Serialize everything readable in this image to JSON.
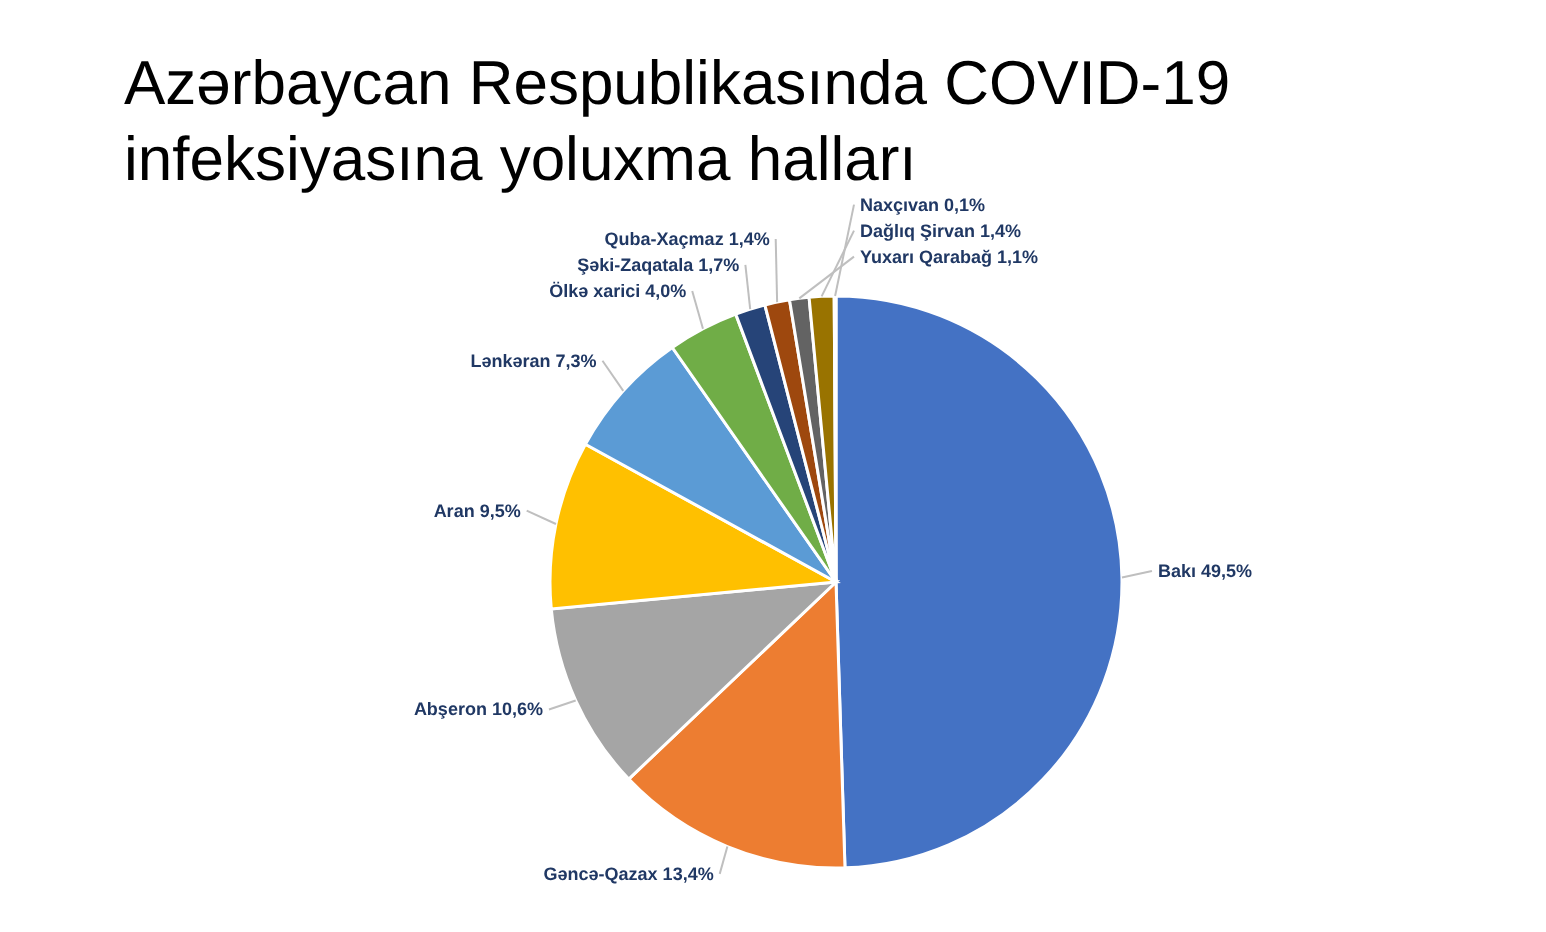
{
  "chart_data": {
    "type": "pie",
    "title": "Azərbaycan Respublikasında COVID-19 infeksiyasına yoluxma halları",
    "categories": [
      "Bakı",
      "Gəncə-Qazax",
      "Abşeron",
      "Aran",
      "Lənkəran",
      "Ölkə xarici",
      "Şəki-Zaqatala",
      "Quba-Xaçmaz",
      "Yuxarı Qarabağ",
      "Dağlıq Şirvan",
      "Naxçıvan"
    ],
    "values": [
      49.5,
      13.4,
      10.6,
      9.5,
      7.3,
      4.0,
      1.7,
      1.4,
      1.1,
      1.4,
      0.1
    ],
    "value_labels": [
      "49,5%",
      "13,4%",
      "10,6%",
      "9,5%",
      "7,3%",
      "4,0%",
      "1,7%",
      "1,4%",
      "1,1%",
      "1,4%",
      "0,1%"
    ],
    "colors": [
      "#4472c4",
      "#ed7d31",
      "#a5a5a5",
      "#ffc000",
      "#5b9bd5",
      "#70ad47",
      "#264478",
      "#9e480e",
      "#636363",
      "#997300",
      "#255e91"
    ],
    "legend": false
  }
}
